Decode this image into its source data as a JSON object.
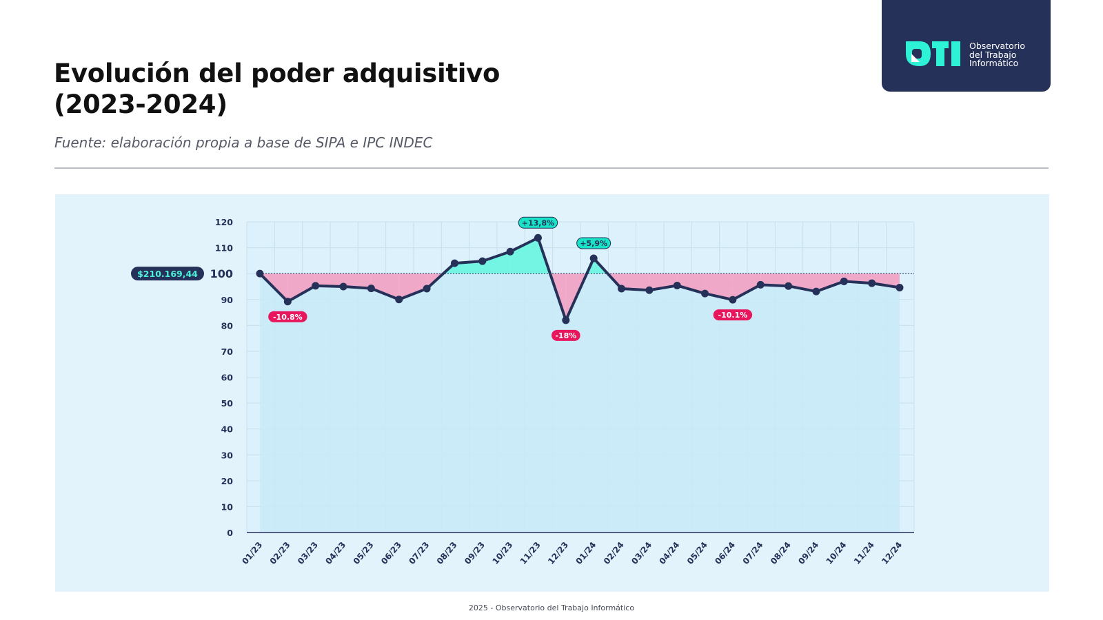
{
  "header": {
    "title_line1": "Evolución del poder adquisitivo",
    "title_line2": "(2023-2024)",
    "source": "Fuente: elaboración propia a base de SIPA e IPC INDEC"
  },
  "logo": {
    "mark_icon": "oti-logo-icon",
    "line1": "Observatorio",
    "line2": "del Trabajo",
    "line3": "Informático"
  },
  "footer": {
    "text": "2025 - Observatorio del Trabajo Informático"
  },
  "colors": {
    "line": "#263159",
    "above_fill": "#74f5e4",
    "below_fill": "#f0a8c8",
    "area_fill": "#c8eaf7",
    "positive_badge": "#19e3c6",
    "negative_badge": "#e8175d",
    "base_badge": "#263159",
    "base_badge_text": "#4df0d8"
  },
  "chart_data": {
    "type": "line",
    "categories": [
      "01/23",
      "02/23",
      "03/23",
      "04/23",
      "05/23",
      "06/23",
      "07/23",
      "08/23",
      "09/23",
      "10/23",
      "11/23",
      "12/23",
      "01/24",
      "02/24",
      "03/24",
      "04/24",
      "05/24",
      "06/24",
      "07/24",
      "08/24",
      "09/24",
      "10/24",
      "11/24",
      "12/24"
    ],
    "series": [
      {
        "values": [
          100,
          89.2,
          95.3,
          95,
          94.3,
          90,
          94.2,
          104,
          104.8,
          108.5,
          113.8,
          82,
          105.9,
          94.2,
          93.6,
          95.4,
          92.3,
          89.9,
          95.7,
          95.2,
          93.1,
          97,
          96.3,
          94.6
        ]
      }
    ],
    "ylim": [
      0,
      120
    ],
    "yticks": [
      0,
      10,
      20,
      30,
      40,
      50,
      60,
      70,
      80,
      90,
      100,
      110,
      120
    ],
    "baseline": 100,
    "baseline_label": "$210.169,44",
    "grid": true,
    "annotations": [
      {
        "category": "02/23",
        "text": "-10.8%",
        "kind": "negative"
      },
      {
        "category": "11/23",
        "text": "+13,8%",
        "kind": "positive"
      },
      {
        "category": "12/23",
        "text": "-18%",
        "kind": "negative"
      },
      {
        "category": "01/24",
        "text": "+5,9%",
        "kind": "positive"
      },
      {
        "category": "06/24",
        "text": "-10.1%",
        "kind": "negative"
      }
    ]
  }
}
